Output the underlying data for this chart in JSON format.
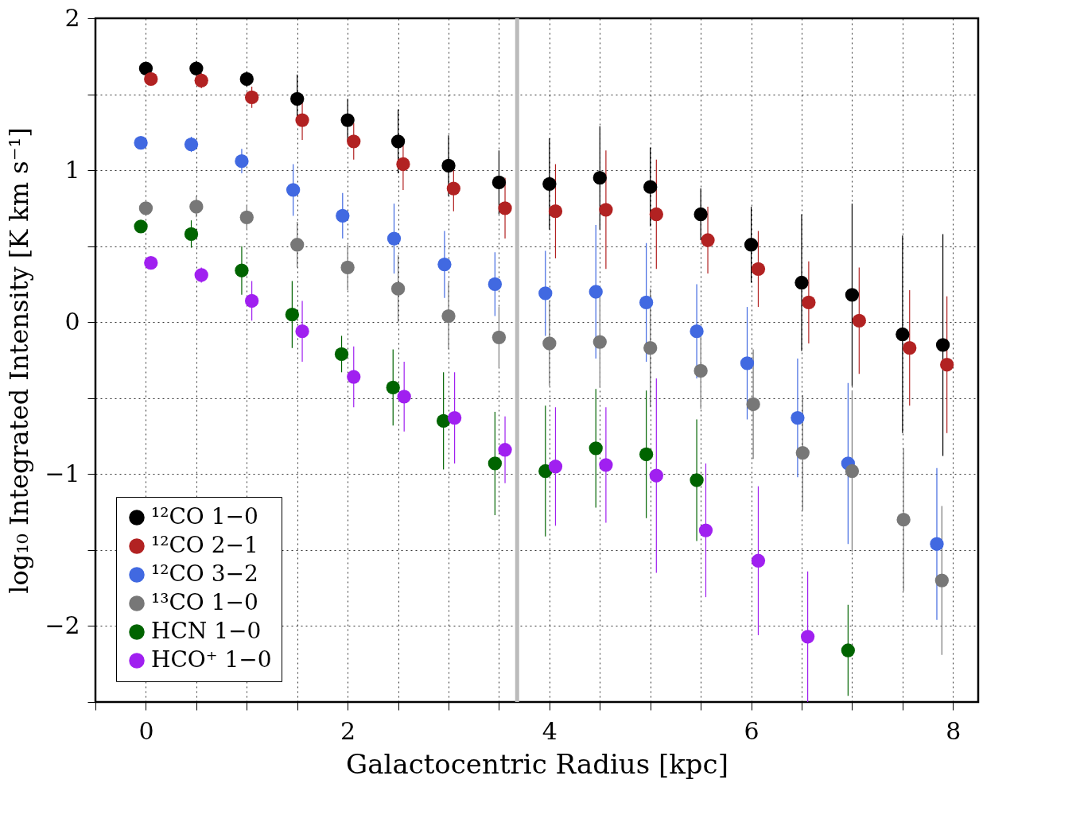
{
  "chart_data": {
    "type": "scatter",
    "xlabel": "Galactocentric Radius [kpc]",
    "ylabel": "log₁₀ Integrated Intensity [K km s⁻¹]",
    "xlim": [
      -0.5,
      8.25
    ],
    "ylim": [
      -2.5,
      2
    ],
    "xticks": [
      {
        "value": -0.5,
        "label": null
      },
      0,
      {
        "value": 0.5,
        "label": null
      },
      {
        "value": 1,
        "label": null
      },
      {
        "value": 1.5,
        "label": null
      },
      2,
      {
        "value": 2.5,
        "label": null
      },
      {
        "value": 3,
        "label": null
      },
      {
        "value": 3.5,
        "label": null
      },
      4,
      {
        "value": 4.5,
        "label": null
      },
      {
        "value": 5,
        "label": null
      },
      {
        "value": 5.5,
        "label": null
      },
      6,
      {
        "value": 6.5,
        "label": null
      },
      {
        "value": 7,
        "label": null
      },
      {
        "value": 7.5,
        "label": null
      },
      8
    ],
    "yticks": [
      {
        "value": -2.5,
        "label": null
      },
      {
        "value": -2,
        "label": "−2"
      },
      {
        "value": -1.5,
        "label": null
      },
      {
        "value": -1,
        "label": "−1"
      },
      {
        "value": -0.5,
        "label": null
      },
      0,
      {
        "value": 0.5,
        "label": null
      },
      1,
      {
        "value": 1.5,
        "label": null
      },
      2
    ],
    "grid": true,
    "legend": "bottom left",
    "marker": "circle",
    "ref_lines": [
      {
        "axis": "x",
        "value": 3.68,
        "color": "#bbbbbb"
      }
    ],
    "series": [
      {
        "name": "¹²CO 1−0",
        "color": "#000000",
        "x": [
          0,
          0.5,
          1,
          1.5,
          2,
          2.5,
          3,
          3.5,
          4,
          4.5,
          5,
          5.5,
          6,
          6.5,
          7,
          7.5,
          7.9
        ],
        "values": [
          1.67,
          1.67,
          1.6,
          1.47,
          1.33,
          1.19,
          1.03,
          0.92,
          0.91,
          0.95,
          0.89,
          0.71,
          0.51,
          0.26,
          0.18,
          -0.08,
          -0.15
        ],
        "errors": [
          0.03,
          0.05,
          0.05,
          0.16,
          0.14,
          0.21,
          0.2,
          0.21,
          0.3,
          0.34,
          0.26,
          0.17,
          0.25,
          0.45,
          0.6,
          0.65,
          0.73
        ]
      },
      {
        "name": "¹²CO 2−1",
        "color": "#b22222",
        "x": [
          0.05,
          0.55,
          1.05,
          1.55,
          2.06,
          2.55,
          3.05,
          3.56,
          4.06,
          4.56,
          5.06,
          5.57,
          6.07,
          6.57,
          7.07,
          7.57,
          7.94
        ],
        "values": [
          1.6,
          1.59,
          1.48,
          1.33,
          1.19,
          1.04,
          0.88,
          0.75,
          0.73,
          0.74,
          0.71,
          0.54,
          0.35,
          0.13,
          0.01,
          -0.17,
          -0.28
        ],
        "errors": [
          0.03,
          0.05,
          0.07,
          0.13,
          0.12,
          0.17,
          0.15,
          0.2,
          0.31,
          0.39,
          0.36,
          0.22,
          0.25,
          0.27,
          0.35,
          0.38,
          0.45
        ]
      },
      {
        "name": "¹²CO 3−2",
        "color": "#4169e1",
        "x": [
          -0.05,
          0.45,
          0.95,
          1.46,
          1.95,
          2.46,
          2.96,
          3.46,
          3.96,
          4.46,
          4.96,
          5.46,
          5.96,
          6.46,
          6.96,
          7.84
        ],
        "values": [
          1.18,
          1.17,
          1.06,
          0.87,
          0.7,
          0.55,
          0.38,
          0.25,
          0.19,
          0.2,
          0.13,
          -0.06,
          -0.27,
          -0.63,
          -0.93,
          -1.46
        ],
        "errors": [
          0.03,
          0.05,
          0.08,
          0.17,
          0.15,
          0.23,
          0.22,
          0.21,
          0.28,
          0.44,
          0.39,
          0.31,
          0.37,
          0.39,
          0.53,
          0.5
        ]
      },
      {
        "name": "¹³CO 1−0",
        "color": "#777777",
        "x": [
          0,
          0.5,
          1,
          1.5,
          2,
          2.5,
          3,
          3.5,
          4,
          4.5,
          5,
          5.5,
          6.02,
          6.51,
          7,
          7.51,
          7.89
        ],
        "values": [
          0.75,
          0.76,
          0.69,
          0.51,
          0.36,
          0.22,
          0.04,
          -0.1,
          -0.14,
          -0.13,
          -0.17,
          -0.32,
          -0.54,
          -0.86,
          -0.98,
          -1.3,
          -1.7
        ],
        "errors": [
          0.03,
          0.07,
          0.08,
          0.15,
          0.15,
          0.22,
          0.22,
          0.2,
          0.28,
          0.3,
          0.39,
          0.25,
          0.36,
          0.38,
          0.53,
          0.47,
          0.49
        ]
      },
      {
        "name": "HCN 1−0",
        "color": "#006400",
        "x": [
          -0.05,
          0.45,
          0.95,
          1.45,
          1.94,
          2.45,
          2.95,
          3.46,
          3.96,
          4.46,
          4.96,
          5.46,
          6.96
        ],
        "values": [
          0.63,
          0.58,
          0.34,
          0.05,
          -0.21,
          -0.43,
          -0.65,
          -0.93,
          -0.98,
          -0.83,
          -0.87,
          -1.04,
          -2.16
        ],
        "errors": [
          0.03,
          0.09,
          0.16,
          0.22,
          0.12,
          0.25,
          0.32,
          0.34,
          0.43,
          0.39,
          0.42,
          0.4,
          0.3
        ]
      },
      {
        "name": "HCO⁺ 1−0",
        "color": "#a020f0",
        "x": [
          0.05,
          0.55,
          1.05,
          1.55,
          2.06,
          2.56,
          3.06,
          3.56,
          4.06,
          4.56,
          5.06,
          5.55,
          6.07,
          6.56
        ],
        "values": [
          0.39,
          0.31,
          0.14,
          -0.06,
          -0.36,
          -0.49,
          -0.63,
          -0.84,
          -0.95,
          -0.94,
          -1.01,
          -1.37,
          -1.57,
          -2.07
        ],
        "errors": [
          0.02,
          0.05,
          0.13,
          0.2,
          0.2,
          0.23,
          0.3,
          0.22,
          0.39,
          0.38,
          0.64,
          0.44,
          0.49,
          0.43
        ]
      }
    ]
  }
}
